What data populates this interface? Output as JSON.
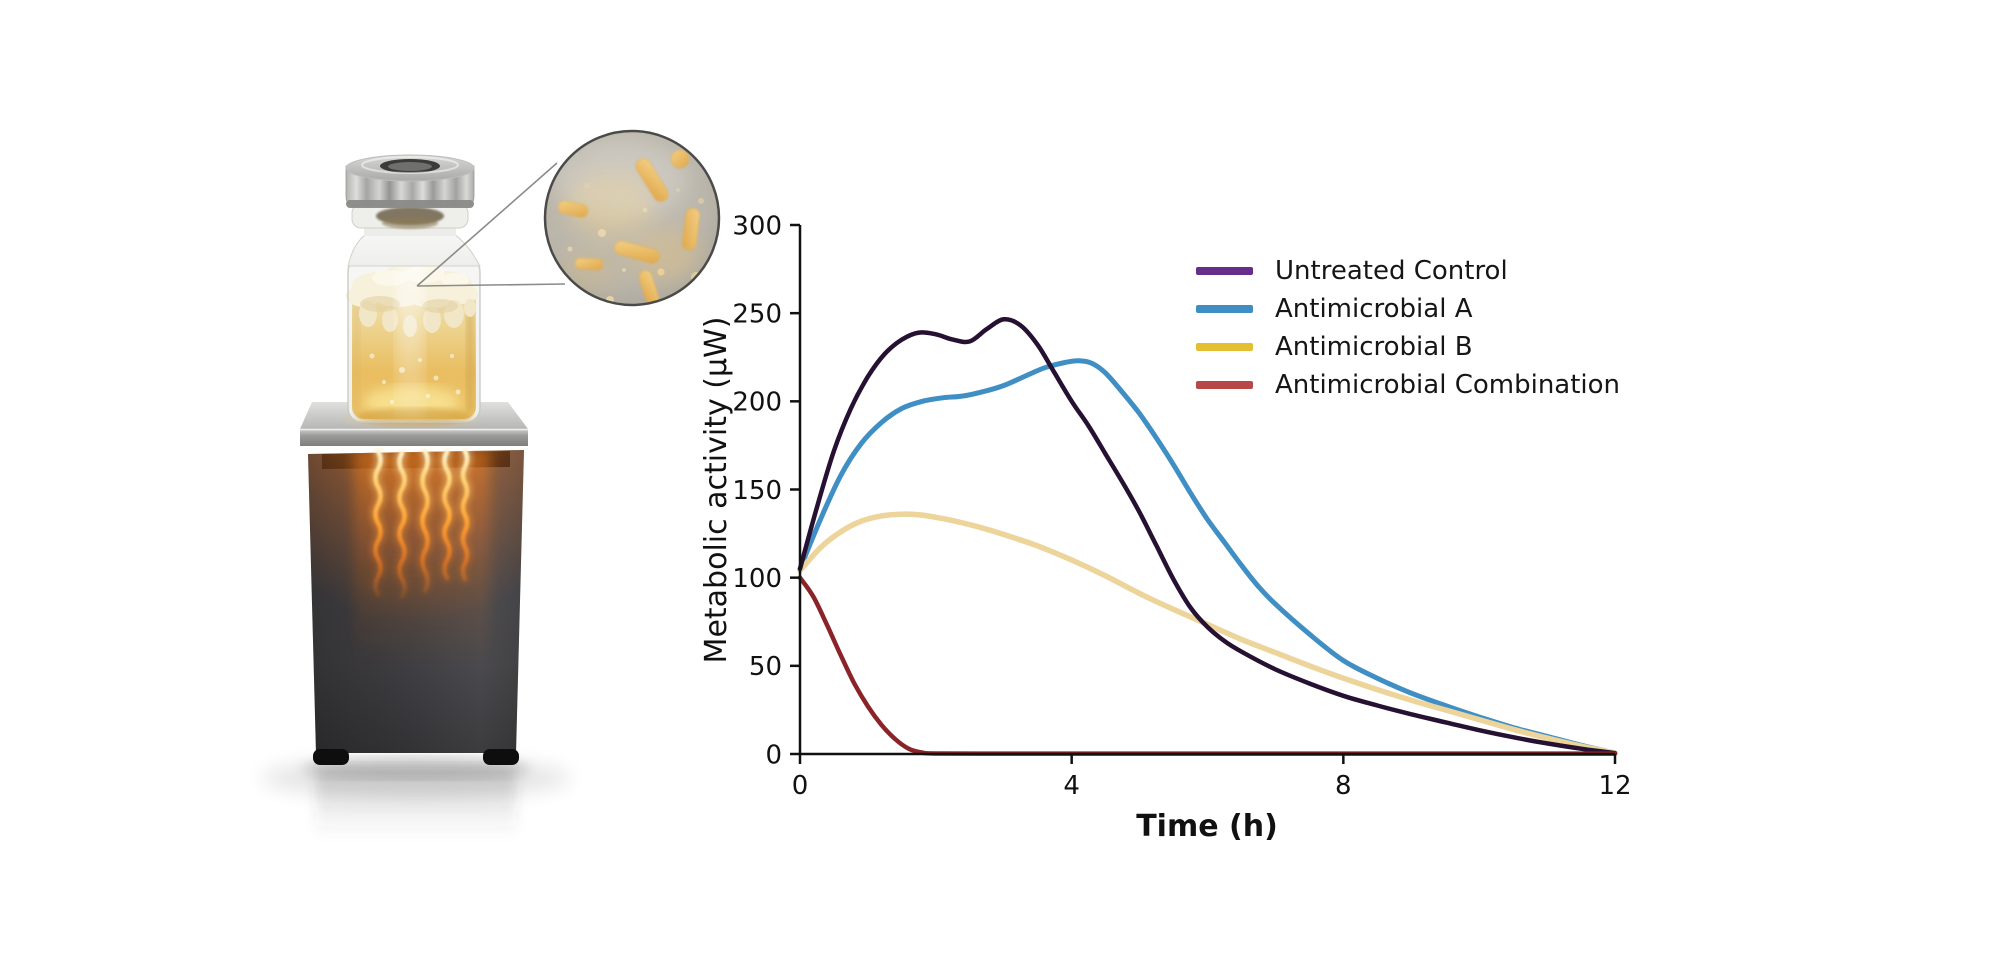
{
  "illustration": {
    "description": "sealed-glass-vial-with-amber-bacterial-culture-on-heated-calorimeter-block-with-magnified-bacteria-inset",
    "glow_color": "#ff9f35",
    "liquid_color": "#e9bd60",
    "metal_color": "#b8b8b6",
    "block_color": "#454448",
    "bacteria_color": "#e8b863"
  },
  "chart_data": {
    "type": "line",
    "title": "",
    "xlabel": "Time (h)",
    "ylabel": "Metabolic activity (μW)",
    "xlim": [
      0,
      12
    ],
    "ylim": [
      0,
      300
    ],
    "xticks": [
      0,
      4,
      8,
      12
    ],
    "yticks": [
      0,
      50,
      100,
      150,
      200,
      250,
      300
    ],
    "grid": false,
    "legend_position": "upper right",
    "axis_color": "#111111",
    "series": [
      {
        "name": "Untreated Control",
        "legend_color": "#672d8a",
        "line_color": "#261132",
        "width": 4.5,
        "points": [
          [
            0,
            105
          ],
          [
            0.25,
            140
          ],
          [
            0.5,
            172
          ],
          [
            0.75,
            196
          ],
          [
            1,
            214
          ],
          [
            1.25,
            227
          ],
          [
            1.5,
            235
          ],
          [
            1.75,
            239
          ],
          [
            2,
            238
          ],
          [
            2.25,
            235
          ],
          [
            2.5,
            234
          ],
          [
            2.75,
            241
          ],
          [
            3,
            246.5
          ],
          [
            3.25,
            243
          ],
          [
            3.5,
            232
          ],
          [
            3.75,
            216
          ],
          [
            4,
            200
          ],
          [
            4.25,
            186
          ],
          [
            4.5,
            170
          ],
          [
            4.75,
            154
          ],
          [
            5,
            137
          ],
          [
            5.25,
            118
          ],
          [
            5.5,
            99
          ],
          [
            5.75,
            83
          ],
          [
            6,
            72
          ],
          [
            6.25,
            64
          ],
          [
            6.5,
            58
          ],
          [
            7,
            48
          ],
          [
            7.5,
            40
          ],
          [
            8,
            33
          ],
          [
            8.5,
            27.5
          ],
          [
            9,
            22.5
          ],
          [
            9.5,
            18
          ],
          [
            10,
            13.5
          ],
          [
            10.5,
            9.5
          ],
          [
            11,
            6
          ],
          [
            11.5,
            3
          ],
          [
            12,
            0.5
          ]
        ]
      },
      {
        "name": "Antimicrobial A",
        "legend_color": "#3e8dc5",
        "line_color": "#3f8fc5",
        "width": 5,
        "points": [
          [
            0,
            105
          ],
          [
            0.3,
            133
          ],
          [
            0.6,
            158
          ],
          [
            0.9,
            176
          ],
          [
            1.2,
            188
          ],
          [
            1.5,
            196
          ],
          [
            1.8,
            200
          ],
          [
            2.1,
            202
          ],
          [
            2.4,
            203
          ],
          [
            2.7,
            205.5
          ],
          [
            3,
            209
          ],
          [
            3.3,
            214
          ],
          [
            3.6,
            219
          ],
          [
            3.9,
            222
          ],
          [
            4.1,
            223
          ],
          [
            4.3,
            221.5
          ],
          [
            4.5,
            216
          ],
          [
            4.75,
            205
          ],
          [
            5,
            193
          ],
          [
            5.25,
            179
          ],
          [
            5.5,
            164
          ],
          [
            5.75,
            148
          ],
          [
            6,
            133
          ],
          [
            6.25,
            120
          ],
          [
            6.5,
            107
          ],
          [
            6.75,
            95
          ],
          [
            7,
            85
          ],
          [
            7.5,
            68
          ],
          [
            8,
            53
          ],
          [
            8.5,
            43
          ],
          [
            9,
            34.5
          ],
          [
            9.5,
            27.5
          ],
          [
            10,
            21
          ],
          [
            10.5,
            15
          ],
          [
            11,
            10
          ],
          [
            11.5,
            5
          ],
          [
            12,
            0.5
          ]
        ]
      },
      {
        "name": "Antimicrobial B",
        "legend_color": "#e2bf33",
        "line_color": "#ecd49a",
        "width": 5.5,
        "points": [
          [
            0,
            104
          ],
          [
            0.3,
            117
          ],
          [
            0.6,
            126
          ],
          [
            0.9,
            132
          ],
          [
            1.2,
            135
          ],
          [
            1.5,
            136
          ],
          [
            1.8,
            135.5
          ],
          [
            2.1,
            133.5
          ],
          [
            2.4,
            131
          ],
          [
            2.7,
            128
          ],
          [
            3,
            124.5
          ],
          [
            3.5,
            118
          ],
          [
            4,
            110
          ],
          [
            4.5,
            101
          ],
          [
            5,
            91
          ],
          [
            5.5,
            82
          ],
          [
            6,
            73.5
          ],
          [
            6.5,
            65
          ],
          [
            7,
            57.5
          ],
          [
            7.5,
            50
          ],
          [
            8,
            43
          ],
          [
            8.5,
            36.5
          ],
          [
            9,
            30.5
          ],
          [
            9.5,
            25
          ],
          [
            10,
            19.5
          ],
          [
            10.5,
            14
          ],
          [
            11,
            9
          ],
          [
            11.5,
            4.5
          ],
          [
            12,
            0.5
          ]
        ]
      },
      {
        "name": "Antimicrobial Combination",
        "legend_color": "#b64848",
        "line_color": "#8a2428",
        "width": 4.5,
        "points": [
          [
            0,
            100
          ],
          [
            0.2,
            89
          ],
          [
            0.4,
            73
          ],
          [
            0.6,
            56
          ],
          [
            0.8,
            40
          ],
          [
            1,
            27
          ],
          [
            1.2,
            16.5
          ],
          [
            1.4,
            8.5
          ],
          [
            1.6,
            3
          ],
          [
            1.8,
            0.8
          ],
          [
            2,
            0.3
          ],
          [
            3,
            0.2
          ],
          [
            4,
            0.2
          ],
          [
            5,
            0.2
          ],
          [
            6,
            0.2
          ],
          [
            7,
            0.2
          ],
          [
            8,
            0.2
          ],
          [
            9,
            0.2
          ],
          [
            10,
            0.2
          ],
          [
            11,
            0.2
          ],
          [
            12,
            0.2
          ]
        ]
      }
    ]
  }
}
